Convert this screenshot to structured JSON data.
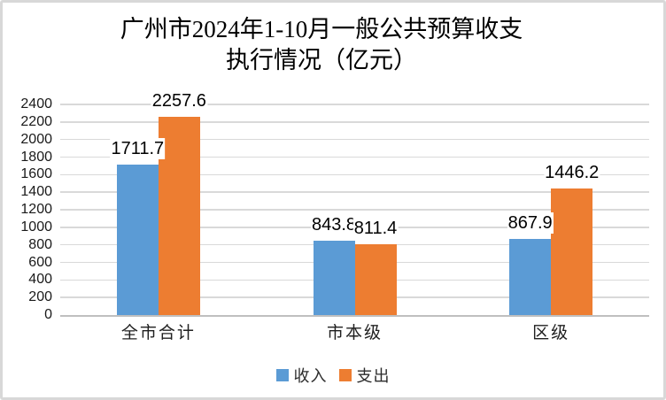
{
  "chart_data": {
    "type": "bar",
    "title_lines": [
      "广州市2024年1-10月一般公共预算收支",
      "执行情况（亿元）"
    ],
    "categories": [
      "全市合计",
      "市本级",
      "区级"
    ],
    "series": [
      {
        "id": "income",
        "name": "收入",
        "color": "#5B9BD5",
        "values": [
          1711.7,
          843.8,
          867.9
        ]
      },
      {
        "id": "expenditure",
        "name": "支出",
        "color": "#ED7D31",
        "values": [
          2257.6,
          811.4,
          1446.2
        ]
      }
    ],
    "yticks": [
      0,
      200,
      400,
      600,
      800,
      1000,
      1200,
      1400,
      1600,
      1800,
      2000,
      2200,
      2400
    ],
    "ylim": [
      0,
      2400
    ],
    "ytick_step": 200,
    "grid": true,
    "data_labels_shown": true,
    "legend_position": "bottom",
    "colors": {
      "gridline": "#D9D9D9",
      "axis_line": "#BFBFBF",
      "text": "#000000",
      "background": "#FFFFFF",
      "frame_border": "#D8D8D8"
    }
  }
}
